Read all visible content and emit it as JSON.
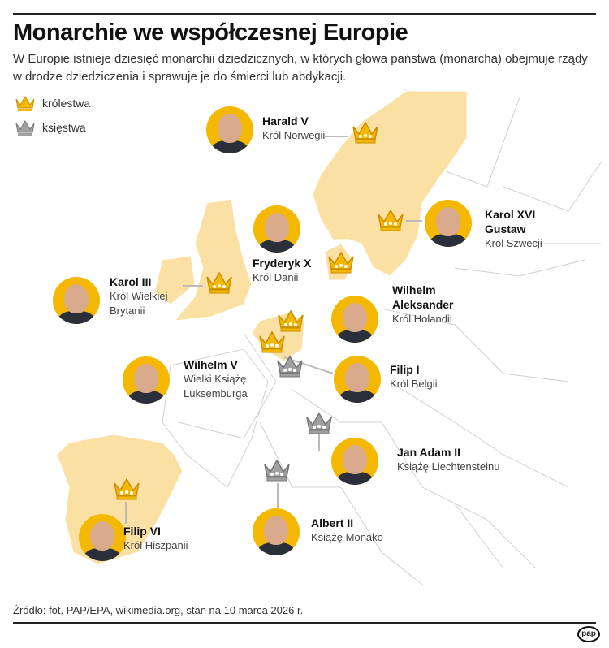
{
  "title": "Monarchie we współczesnej Europie",
  "lead": "W Europie istnieje dziesięć monarchii dziedzicznych, w których głowa państwa (monarcha) obejmuje rządy w drodze dziedziczenia i sprawuje je do śmierci lub abdykacji.",
  "legend": {
    "kingdom": "królestwa",
    "principality": "księstwa"
  },
  "colors": {
    "kingdom_crown": "#f5b800",
    "principality_crown": "#a0a0a0",
    "monarchy_land": "#fbe0a4",
    "borders": "#cfcfcf"
  },
  "monarchs": [
    {
      "name": "Harald V",
      "title": "Król Norwegii",
      "type": "kingdom"
    },
    {
      "name": "Karol XVI Gustaw",
      "title": "Król Szwecji",
      "type": "kingdom"
    },
    {
      "name": "Fryderyk X",
      "title": "Król Danii",
      "type": "kingdom"
    },
    {
      "name": "Karol III",
      "title": "Król Wielkiej Brytanii",
      "type": "kingdom"
    },
    {
      "name": "Wilhelm Aleksander",
      "title": "Król Holandii",
      "type": "kingdom"
    },
    {
      "name": "Wilhelm V",
      "title": "Wielki Książę Luksemburga",
      "type": "principality"
    },
    {
      "name": "Filip I",
      "title": "Król Belgii",
      "type": "kingdom"
    },
    {
      "name": "Jan Adam II",
      "title": "Książę Liechtensteinu",
      "type": "principality"
    },
    {
      "name": "Albert II",
      "title": "Książę Monako",
      "type": "principality"
    },
    {
      "name": "Filip VI",
      "title": "Król Hiszpanii",
      "type": "kingdom"
    }
  ],
  "source": "Źródło: fot. PAP/EPA, wikimedia.org, stan na 10 marca 2026 r.",
  "logo": "pap"
}
